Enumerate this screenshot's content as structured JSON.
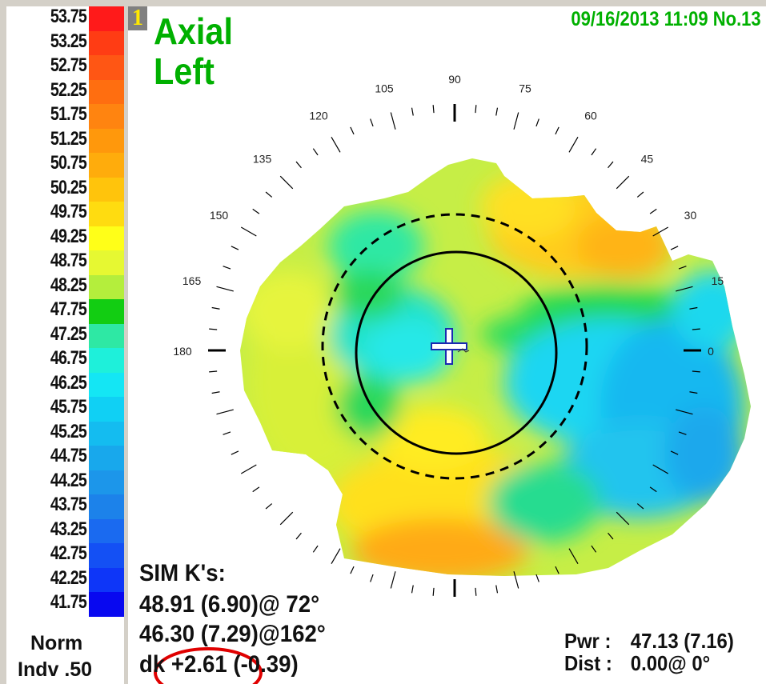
{
  "scale": {
    "values": [
      "53.75",
      "53.25",
      "52.75",
      "52.25",
      "51.75",
      "51.25",
      "50.75",
      "50.25",
      "49.75",
      "49.25",
      "48.75",
      "48.25",
      "47.75",
      "47.25",
      "46.75",
      "46.25",
      "45.75",
      "45.25",
      "44.75",
      "44.25",
      "43.75",
      "43.25",
      "42.75",
      "42.25",
      "41.75"
    ],
    "colors": [
      "#ff1a1a",
      "#ff3c14",
      "#ff5614",
      "#ff6e10",
      "#ff8410",
      "#ff980c",
      "#ffac0c",
      "#ffc40c",
      "#ffdc10",
      "#ffff18",
      "#e6f832",
      "#b4ee3c",
      "#12cd12",
      "#2ee8a4",
      "#1ef0da",
      "#14e6f4",
      "#10d0f4",
      "#14bcf0",
      "#18a8ec",
      "#1c96ea",
      "#1c82ea",
      "#1a6af0",
      "#1450f4",
      "#0e36f8",
      "#0808f0"
    ],
    "footer_line1": "Norm",
    "footer_line2": "Indv .50"
  },
  "map": {
    "badge": "1",
    "title_line1": "Axial",
    "title_line2": "Left",
    "datetime": "09/16/2013 11:09 No.13",
    "angle_labels": [
      "0",
      "15",
      "30",
      "45",
      "60",
      "75",
      "90",
      "105",
      "120",
      "135",
      "150",
      "165",
      "180"
    ]
  },
  "simk": {
    "heading": "SIM K's:",
    "line1": "48.91 (6.90)@ 72°",
    "line2": "46.30 (7.29)@162°",
    "line3": "dk +2.61 (-0.39)"
  },
  "power": {
    "pwr_label": "Pwr :",
    "pwr_value": "47.13 (7.16)",
    "dist_label": "Dist :",
    "dist_value": "0.00@  0°"
  },
  "colors": {
    "title_green": "#00b000",
    "annotation_red": "#e00000"
  }
}
